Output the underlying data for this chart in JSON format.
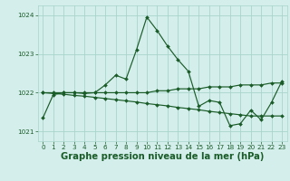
{
  "xlabel": "Graphe pression niveau de la mer (hPa)",
  "ylim": [
    1020.75,
    1024.25
  ],
  "xlim": [
    -0.5,
    23.5
  ],
  "yticks": [
    1021,
    1022,
    1023,
    1024
  ],
  "xticks": [
    0,
    1,
    2,
    3,
    4,
    5,
    6,
    7,
    8,
    9,
    10,
    11,
    12,
    13,
    14,
    15,
    16,
    17,
    18,
    19,
    20,
    21,
    22,
    23
  ],
  "bg_color": "#d4eeec",
  "grid_color": "#a8d4cc",
  "line_color": "#1a5c28",
  "lines": [
    {
      "x": [
        0,
        1,
        2,
        3,
        4,
        5,
        6,
        7,
        8,
        9,
        10,
        11,
        12,
        13,
        14,
        15,
        16,
        17,
        18,
        19,
        20,
        21,
        22,
        23
      ],
      "y": [
        1021.35,
        1021.95,
        1022.0,
        1022.0,
        1021.98,
        1022.0,
        1022.2,
        1022.45,
        1022.35,
        1023.1,
        1023.95,
        1023.6,
        1023.2,
        1022.85,
        1022.55,
        1021.65,
        1021.8,
        1021.75,
        1021.15,
        1021.2,
        1021.55,
        1021.3,
        1021.75,
        1022.3
      ]
    },
    {
      "x": [
        0,
        1,
        2,
        3,
        4,
        5,
        6,
        7,
        8,
        9,
        10,
        11,
        12,
        13,
        14,
        15,
        16,
        17,
        18,
        19,
        20,
        21,
        22,
        23
      ],
      "y": [
        1022.0,
        1022.0,
        1022.0,
        1022.0,
        1022.0,
        1022.0,
        1022.0,
        1022.0,
        1022.0,
        1022.0,
        1022.0,
        1022.05,
        1022.05,
        1022.1,
        1022.1,
        1022.1,
        1022.15,
        1022.15,
        1022.15,
        1022.2,
        1022.2,
        1022.2,
        1022.25,
        1022.25
      ]
    },
    {
      "x": [
        0,
        1,
        2,
        3,
        4,
        5,
        6,
        7,
        8,
        9,
        10,
        11,
        12,
        13,
        14,
        15,
        16,
        17,
        18,
        19,
        20,
        21,
        22,
        23
      ],
      "y": [
        1022.0,
        1021.98,
        1021.96,
        1021.93,
        1021.91,
        1021.88,
        1021.85,
        1021.82,
        1021.79,
        1021.76,
        1021.72,
        1021.69,
        1021.66,
        1021.62,
        1021.59,
        1021.56,
        1021.52,
        1021.49,
        1021.46,
        1021.43,
        1021.4,
        1021.4,
        1021.4,
        1021.4
      ]
    }
  ],
  "tick_fontsize": 5.2,
  "xlabel_fontsize": 7.2,
  "tick_color": "#1a5c28",
  "xlabel_color": "#1a5c28",
  "marker": "D",
  "markersize": 2.0,
  "linewidth": 0.85
}
